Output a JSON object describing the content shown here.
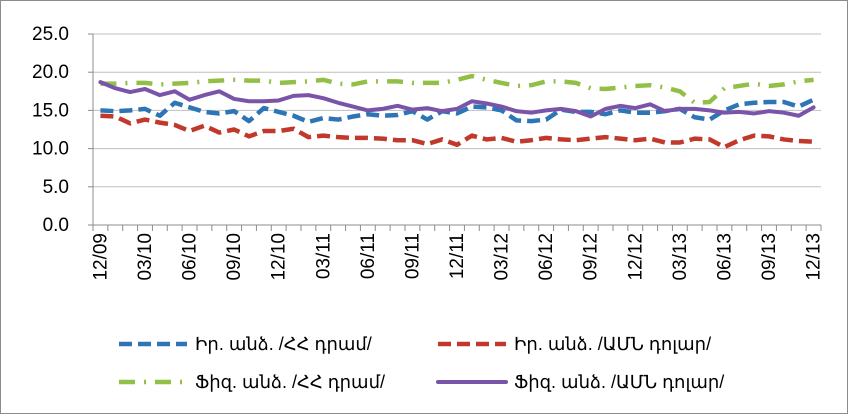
{
  "chart_data": {
    "type": "line",
    "title": "",
    "xlabel": "",
    "ylabel": "",
    "ylim": [
      0,
      25
    ],
    "yticks": [
      "0.0",
      "5.0",
      "10.0",
      "15.0",
      "20.0",
      "25.0"
    ],
    "grid": "horizontal",
    "legend_position": "bottom",
    "categories": [
      "12/09",
      "01/10",
      "02/10",
      "03/10",
      "04/10",
      "05/10",
      "06/10",
      "07/10",
      "08/10",
      "09/10",
      "10/10",
      "11/10",
      "12/10",
      "01/11",
      "02/11",
      "03/11",
      "04/11",
      "05/11",
      "06/11",
      "07/11",
      "08/11",
      "09/11",
      "10/11",
      "11/11",
      "12/11",
      "01/12",
      "02/12",
      "03/12",
      "04/12",
      "05/12",
      "06/12",
      "07/12",
      "08/12",
      "09/12",
      "10/12",
      "11/12",
      "12/12",
      "01/13",
      "02/13",
      "03/13",
      "04/13",
      "05/13",
      "06/13",
      "07/13",
      "08/13",
      "09/13",
      "10/13",
      "11/13",
      "12/13"
    ],
    "xtick_labels": [
      "12/09",
      "03/10",
      "06/10",
      "09/10",
      "12/10",
      "03/11",
      "06/11",
      "09/11",
      "12/11",
      "03/12",
      "06/12",
      "09/12",
      "12/12",
      "03/13",
      "06/13",
      "09/13",
      "12/13"
    ],
    "series": [
      {
        "name": "Իր. անձ. /ՀՀ դրամ/",
        "color": "#2e75b6",
        "dash": "long-dash",
        "values": [
          15.0,
          14.9,
          15.0,
          15.2,
          14.3,
          16.0,
          15.4,
          14.8,
          14.6,
          14.9,
          13.6,
          15.3,
          14.8,
          14.3,
          13.5,
          14.0,
          13.8,
          14.2,
          14.5,
          14.3,
          14.4,
          14.9,
          13.8,
          14.9,
          14.6,
          15.5,
          15.4,
          15.0,
          13.7,
          13.6,
          13.8,
          15.1,
          14.8,
          14.8,
          14.5,
          15.0,
          14.7,
          14.7,
          14.9,
          15.2,
          14.1,
          13.8,
          15.0,
          15.8,
          16.0,
          16.1,
          16.1,
          15.5,
          16.4
        ]
      },
      {
        "name": "Իր. անձ. /ԱՄՆ դոլար/",
        "color": "#c0392b",
        "dash": "long-dash",
        "values": [
          14.3,
          14.2,
          13.3,
          13.8,
          13.4,
          13.1,
          12.3,
          13.0,
          12.1,
          12.5,
          11.6,
          12.3,
          12.3,
          12.6,
          11.5,
          11.7,
          11.5,
          11.4,
          11.4,
          11.3,
          11.1,
          11.1,
          10.6,
          11.2,
          10.5,
          11.7,
          11.2,
          11.4,
          10.9,
          11.1,
          11.4,
          11.2,
          11.1,
          11.3,
          11.5,
          11.3,
          11.1,
          11.3,
          10.8,
          10.8,
          11.3,
          11.2,
          10.2,
          11.1,
          11.7,
          11.6,
          11.2,
          11.0,
          10.9
        ]
      },
      {
        "name": "Ֆիզ. անձ. /ՀՀ դրամ/",
        "color": "#92c047",
        "dash": "dash-dot",
        "values": [
          18.5,
          18.5,
          18.6,
          18.6,
          18.4,
          18.5,
          18.6,
          18.8,
          18.9,
          19.0,
          18.9,
          18.9,
          18.6,
          18.7,
          18.8,
          19.0,
          18.5,
          18.4,
          18.8,
          18.8,
          18.8,
          18.6,
          18.6,
          18.6,
          19.0,
          19.5,
          19.0,
          18.6,
          18.2,
          18.3,
          18.8,
          18.8,
          18.6,
          17.9,
          17.8,
          18.0,
          18.2,
          18.3,
          18.0,
          17.5,
          16.0,
          16.1,
          17.9,
          18.2,
          18.5,
          18.2,
          18.4,
          18.8,
          19.0
        ]
      },
      {
        "name": "Ֆիզ. անձ. /ԱՄՆ դոլար/",
        "color": "#7a54a8",
        "dash": "solid",
        "values": [
          18.7,
          17.9,
          17.4,
          17.8,
          17.0,
          17.5,
          16.4,
          17.0,
          17.5,
          16.5,
          16.2,
          16.2,
          16.3,
          16.9,
          17.0,
          16.6,
          16.0,
          15.5,
          15.0,
          15.2,
          15.6,
          15.1,
          15.3,
          14.9,
          15.2,
          16.2,
          15.9,
          15.5,
          14.9,
          14.7,
          15.0,
          15.2,
          14.9,
          14.2,
          15.2,
          15.6,
          15.3,
          15.8,
          14.9,
          15.2,
          15.2,
          15.0,
          14.7,
          14.8,
          14.6,
          14.9,
          14.7,
          14.3,
          15.4
        ]
      }
    ]
  }
}
